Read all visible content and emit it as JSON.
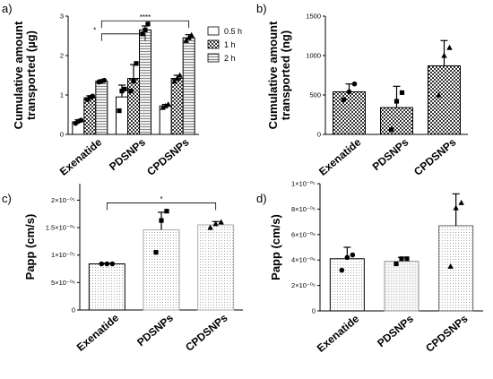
{
  "chart_data": [
    {
      "panel": "a)",
      "type": "bar",
      "ylabel": "Cumulative amount transported (µg)",
      "ylabel_lines": [
        "Cumulative amount",
        "transported (µg)"
      ],
      "categories": [
        "Exenatide",
        "PDSNPs",
        "CPDSNPs"
      ],
      "ylim": [
        0,
        3
      ],
      "yticks": [
        "0",
        "1",
        "2",
        "3"
      ],
      "legend_position": "right",
      "series": [
        {
          "name": "0.5 h",
          "pattern": "plain",
          "values": [
            0.32,
            0.95,
            0.72
          ],
          "errors": [
            0.05,
            0.3,
            0.04
          ],
          "points": [
            [
              0.28,
              0.33,
              0.36
            ],
            [
              0.6,
              1.1,
              1.15
            ],
            [
              0.68,
              0.72,
              0.76
            ]
          ]
        },
        {
          "name": "1 h",
          "pattern": "check",
          "values": [
            0.93,
            1.42,
            1.42
          ],
          "errors": [
            0.05,
            0.35,
            0.08
          ],
          "points": [
            [
              0.88,
              0.94,
              0.97
            ],
            [
              1.1,
              1.35,
              1.8
            ],
            [
              1.35,
              1.42,
              1.5
            ]
          ]
        },
        {
          "name": "2 h",
          "pattern": "lines",
          "values": [
            1.35,
            2.65,
            2.45
          ],
          "errors": [
            0.03,
            0.1,
            0.08
          ],
          "points": [
            [
              1.33,
              1.35,
              1.37
            ],
            [
              2.55,
              2.65,
              2.8
            ],
            [
              2.38,
              2.45,
              2.52
            ]
          ]
        }
      ],
      "significance": [
        {
          "label": "*",
          "from": "Exenatide",
          "to": "PDSNPs",
          "y": 2.55
        },
        {
          "label": "****",
          "from": "Exenatide",
          "to": "CPDSNPs",
          "y": 2.88
        }
      ]
    },
    {
      "panel": "b)",
      "type": "bar",
      "ylabel": "Cumulative amount transported (ng)",
      "ylabel_lines": [
        "Cumulative amount",
        "transported (ng)"
      ],
      "categories": [
        "Exenatide",
        "PDSNPs",
        "CPDSNPs"
      ],
      "ylim": [
        0,
        1500
      ],
      "yticks": [
        "0",
        "500",
        "1000",
        "1500"
      ],
      "values": [
        540,
        340,
        870
      ],
      "errors": [
        100,
        270,
        320
      ],
      "points": [
        [
          440,
          540,
          640
        ],
        [
          60,
          420,
          530
        ],
        [
          500,
          1000,
          1100
        ]
      ],
      "pattern": "check"
    },
    {
      "panel": "c)",
      "type": "bar",
      "ylabel": "Papp (cm/s)",
      "categories": [
        "Exenatide",
        "PDSNPs",
        "CPDSNPs"
      ],
      "ylim": [
        0,
        2.3e-05
      ],
      "yticks": [
        "0",
        "5×10⁻⁰⁶",
        "1×10⁻⁰⁵",
        "1.5×10⁻⁰⁵",
        "2×10⁻⁰⁵"
      ],
      "values": [
        8.4e-06,
        1.46e-05,
        1.55e-05
      ],
      "errors": [
        1e-07,
        3.2e-06,
        6e-07
      ],
      "points": [
        [
          8.4e-06,
          8.4e-06,
          8.4e-06
        ],
        [
          1.05e-05,
          1.63e-05,
          1.8e-05
        ],
        [
          1.5e-05,
          1.57e-05,
          1.6e-05
        ]
      ],
      "pattern": "dots",
      "significance": [
        {
          "label": "*",
          "from": "Exenatide",
          "to": "CPDSNPs",
          "y": 1.95e-05
        }
      ]
    },
    {
      "panel": "d)",
      "type": "bar",
      "ylabel": "Papp (cm/s)",
      "categories": [
        "Exenatide",
        "PDSNPs",
        "CPDSNPs"
      ],
      "ylim": [
        0,
        1e-05
      ],
      "yticks": [
        "0",
        "2×10⁻⁰⁶",
        "4×10⁻⁰⁶",
        "6×10⁻⁰⁶",
        "8×10⁻⁰⁶",
        "1×10⁻⁰⁵"
      ],
      "values": [
        4.1e-06,
        3.9e-06,
        6.7e-06
      ],
      "errors": [
        9e-07,
        3e-07,
        2.5e-06
      ],
      "points": [
        [
          3.2e-06,
          4.2e-06,
          4.4e-06
        ],
        [
          3.7e-06,
          4.1e-06,
          4.1e-06
        ],
        [
          3.5e-06,
          8.1e-06,
          8.5e-06
        ]
      ],
      "pattern": "dots"
    }
  ]
}
